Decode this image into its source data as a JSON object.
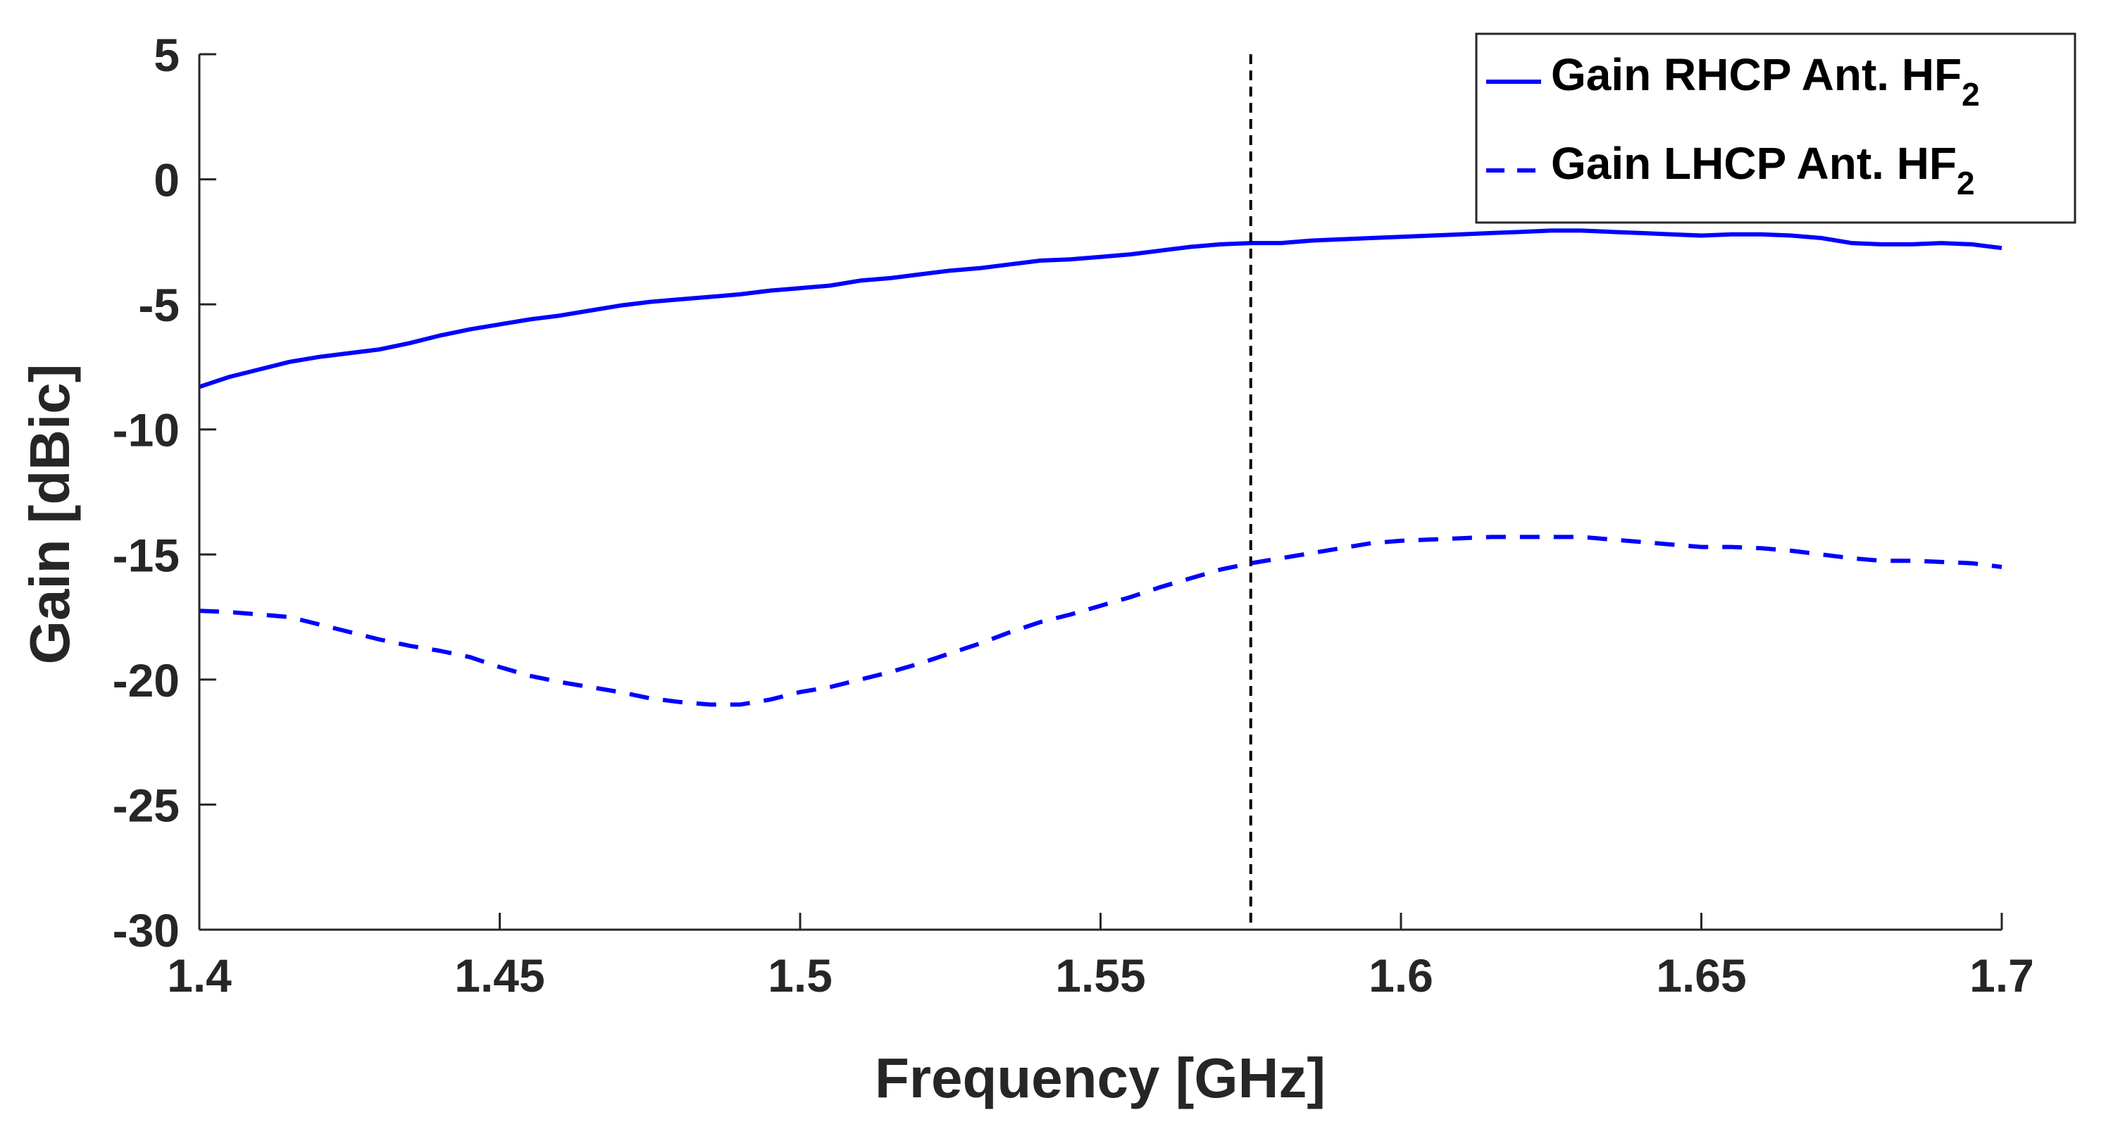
{
  "chart_data": {
    "type": "line",
    "title": "",
    "xlabel": "Frequency [GHz]",
    "ylabel": "Gain [dBic]",
    "xlim": [
      1.4,
      1.7
    ],
    "ylim": [
      -30,
      5
    ],
    "xticks": [
      1.4,
      1.45,
      1.5,
      1.55,
      1.6,
      1.65,
      1.7
    ],
    "xtick_labels": [
      "1.4",
      "1.45",
      "1.5",
      "1.55",
      "1.6",
      "1.65",
      "1.7"
    ],
    "yticks": [
      5,
      0,
      -5,
      -10,
      -15,
      -20,
      -25,
      -30
    ],
    "ytick_labels": [
      "5",
      "0",
      "-5",
      "-10",
      "-15",
      "-20",
      "-25",
      "-30"
    ],
    "grid": false,
    "legend_position": "top-right",
    "reference_line": {
      "x": 1.575,
      "style": "dashed",
      "color": "#000000"
    },
    "series": [
      {
        "name": "Gain RHCP Ant. HF",
        "name_subscript": "2",
        "style": "solid",
        "color": "#0000ff",
        "x": [
          1.4,
          1.405,
          1.41,
          1.415,
          1.42,
          1.425,
          1.43,
          1.435,
          1.44,
          1.445,
          1.45,
          1.455,
          1.46,
          1.465,
          1.47,
          1.475,
          1.48,
          1.485,
          1.49,
          1.495,
          1.5,
          1.505,
          1.51,
          1.515,
          1.52,
          1.525,
          1.53,
          1.535,
          1.54,
          1.545,
          1.55,
          1.555,
          1.56,
          1.565,
          1.57,
          1.575,
          1.58,
          1.585,
          1.59,
          1.595,
          1.6,
          1.605,
          1.61,
          1.615,
          1.62,
          1.625,
          1.63,
          1.635,
          1.64,
          1.645,
          1.65,
          1.655,
          1.66,
          1.665,
          1.67,
          1.675,
          1.68,
          1.685,
          1.69,
          1.695,
          1.7
        ],
        "y": [
          -8.3,
          -7.9,
          -7.6,
          -7.3,
          -7.1,
          -6.95,
          -6.8,
          -6.55,
          -6.25,
          -6.0,
          -5.8,
          -5.6,
          -5.45,
          -5.25,
          -5.05,
          -4.9,
          -4.8,
          -4.7,
          -4.6,
          -4.45,
          -4.35,
          -4.25,
          -4.05,
          -3.95,
          -3.8,
          -3.65,
          -3.55,
          -3.4,
          -3.25,
          -3.2,
          -3.1,
          -3.0,
          -2.85,
          -2.7,
          -2.6,
          -2.55,
          -2.55,
          -2.45,
          -2.4,
          -2.35,
          -2.3,
          -2.25,
          -2.2,
          -2.15,
          -2.1,
          -2.05,
          -2.05,
          -2.1,
          -2.15,
          -2.2,
          -2.25,
          -2.2,
          -2.2,
          -2.25,
          -2.35,
          -2.55,
          -2.6,
          -2.6,
          -2.55,
          -2.6,
          -2.75
        ]
      },
      {
        "name": "Gain LHCP Ant. HF",
        "name_subscript": "2",
        "style": "dashed",
        "color": "#0000ff",
        "x": [
          1.4,
          1.405,
          1.41,
          1.415,
          1.42,
          1.425,
          1.43,
          1.435,
          1.44,
          1.445,
          1.45,
          1.455,
          1.46,
          1.465,
          1.47,
          1.475,
          1.48,
          1.485,
          1.49,
          1.495,
          1.5,
          1.505,
          1.51,
          1.515,
          1.52,
          1.525,
          1.53,
          1.535,
          1.54,
          1.545,
          1.55,
          1.555,
          1.56,
          1.565,
          1.57,
          1.575,
          1.58,
          1.585,
          1.59,
          1.595,
          1.6,
          1.605,
          1.61,
          1.615,
          1.62,
          1.625,
          1.63,
          1.635,
          1.64,
          1.645,
          1.65,
          1.655,
          1.66,
          1.665,
          1.67,
          1.675,
          1.68,
          1.685,
          1.69,
          1.695,
          1.7
        ],
        "y": [
          -17.25,
          -17.3,
          -17.4,
          -17.5,
          -17.8,
          -18.1,
          -18.4,
          -18.65,
          -18.85,
          -19.1,
          -19.5,
          -19.85,
          -20.1,
          -20.3,
          -20.5,
          -20.75,
          -20.9,
          -21.0,
          -21.0,
          -20.8,
          -20.5,
          -20.3,
          -20.0,
          -19.7,
          -19.35,
          -18.95,
          -18.55,
          -18.1,
          -17.7,
          -17.4,
          -17.05,
          -16.7,
          -16.3,
          -15.95,
          -15.6,
          -15.35,
          -15.15,
          -14.95,
          -14.75,
          -14.55,
          -14.45,
          -14.4,
          -14.35,
          -14.3,
          -14.3,
          -14.3,
          -14.3,
          -14.4,
          -14.5,
          -14.6,
          -14.7,
          -14.7,
          -14.75,
          -14.85,
          -15.0,
          -15.15,
          -15.25,
          -15.25,
          -15.3,
          -15.35,
          -15.5
        ]
      }
    ]
  }
}
